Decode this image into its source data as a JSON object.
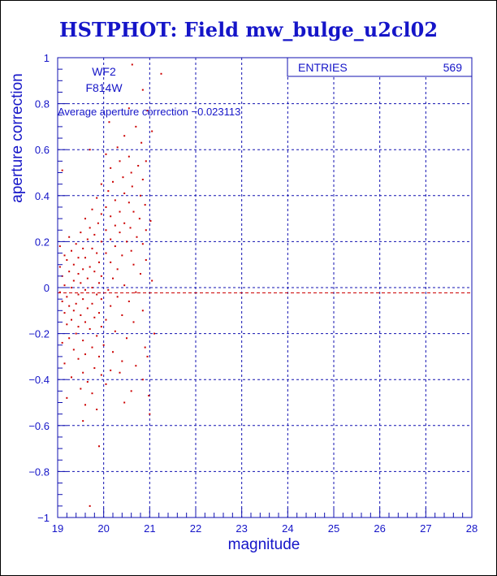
{
  "title": "HSTPHOT: Field mw_bulge_u2cl02",
  "colors": {
    "axis": "#1010b0",
    "text": "#1515c8",
    "points": "#cc0000",
    "mean": "#cc0000"
  },
  "labels": {
    "camera": "WF2",
    "filter": "F814W",
    "average": "Average aperture correction −0.023113"
  },
  "stats": {
    "entries_label": "ENTRIES",
    "entries_value": "569"
  },
  "chart_data": {
    "type": "scatter",
    "title": "HSTPHOT: Field mw_bulge_u2cl02",
    "xlabel": "magnitude",
    "ylabel": "aperture correction",
    "xlim": [
      19,
      28
    ],
    "ylim": [
      -1,
      1
    ],
    "xticks": [
      19,
      20,
      21,
      22,
      23,
      24,
      25,
      26,
      27,
      28
    ],
    "yticks": [
      -1,
      -0.8,
      -0.6,
      -0.4,
      -0.2,
      0,
      0.2,
      0.4,
      0.6,
      0.8,
      1
    ],
    "ytick_labels": [
      "−1",
      "−0.8",
      "−0.6",
      "−0.4",
      "−0.2",
      "0",
      "0.2",
      "0.4",
      "0.6",
      "0.8",
      "1"
    ],
    "grid": true,
    "mean_line": -0.023113,
    "entries": 569,
    "series": [
      {
        "points": [
          [
            20.62,
            0.97
          ],
          [
            21.25,
            0.93
          ],
          [
            20.85,
            0.86
          ],
          [
            20.55,
            0.78
          ],
          [
            20.95,
            0.77
          ],
          [
            20.12,
            0.72
          ],
          [
            20.7,
            0.7
          ],
          [
            21.05,
            0.68
          ],
          [
            20.45,
            0.66
          ],
          [
            20.82,
            0.63
          ],
          [
            20.3,
            0.61
          ],
          [
            19.7,
            0.6
          ],
          [
            20.05,
            0.58
          ],
          [
            20.55,
            0.57
          ],
          [
            20.92,
            0.55
          ],
          [
            20.35,
            0.55
          ],
          [
            20.75,
            0.53
          ],
          [
            20.15,
            0.52
          ],
          [
            19.1,
            0.51
          ],
          [
            20.6,
            0.5
          ],
          [
            20.42,
            0.48
          ],
          [
            20.85,
            0.47
          ],
          [
            20.2,
            0.46
          ],
          [
            19.95,
            0.45
          ],
          [
            20.62,
            0.44
          ],
          [
            20.1,
            0.42
          ],
          [
            20.45,
            0.41
          ],
          [
            20.8,
            0.4
          ],
          [
            19.85,
            0.39
          ],
          [
            20.25,
            0.38
          ],
          [
            20.55,
            0.37
          ],
          [
            20.9,
            0.36
          ],
          [
            20.05,
            0.35
          ],
          [
            19.75,
            0.34
          ],
          [
            20.35,
            0.33
          ],
          [
            20.65,
            0.33
          ],
          [
            19.95,
            0.32
          ],
          [
            20.15,
            0.31
          ],
          [
            20.78,
            0.3
          ],
          [
            19.6,
            0.3
          ],
          [
            21.02,
            0.29
          ],
          [
            20.45,
            0.28
          ],
          [
            19.88,
            0.28
          ],
          [
            20.25,
            0.27
          ],
          [
            20.58,
            0.26
          ],
          [
            19.7,
            0.26
          ],
          [
            20.05,
            0.25
          ],
          [
            20.92,
            0.25
          ],
          [
            19.5,
            0.24
          ],
          [
            20.35,
            0.24
          ],
          [
            19.8,
            0.23
          ],
          [
            20.72,
            0.22
          ],
          [
            19.25,
            0.22
          ],
          [
            20.15,
            0.21
          ],
          [
            19.65,
            0.21
          ],
          [
            20.5,
            0.2
          ],
          [
            19.95,
            0.2
          ],
          [
            19.4,
            0.19
          ],
          [
            20.85,
            0.19
          ],
          [
            19.05,
            0.18
          ],
          [
            20.25,
            0.18
          ],
          [
            19.75,
            0.17
          ],
          [
            19.55,
            0.17
          ],
          [
            20.6,
            0.16
          ],
          [
            19.3,
            0.16
          ],
          [
            20.05,
            0.15
          ],
          [
            19.85,
            0.15
          ],
          [
            19.15,
            0.14
          ],
          [
            20.4,
            0.14
          ],
          [
            19.6,
            0.13
          ],
          [
            19.45,
            0.13
          ],
          [
            20.92,
            0.12
          ],
          [
            19.2,
            0.12
          ],
          [
            20.15,
            0.11
          ],
          [
            19.9,
            0.11
          ],
          [
            19.35,
            0.1
          ],
          [
            20.65,
            0.1
          ],
          [
            19.7,
            0.09
          ],
          [
            19.05,
            0.09
          ],
          [
            20.3,
            0.08
          ],
          [
            19.55,
            0.08
          ],
          [
            19.8,
            0.07
          ],
          [
            19.25,
            0.07
          ],
          [
            20.8,
            0.06
          ],
          [
            19.45,
            0.06
          ],
          [
            19.95,
            0.05
          ],
          [
            19.1,
            0.05
          ],
          [
            20.2,
            0.04
          ],
          [
            19.65,
            0.04
          ],
          [
            19.35,
            0.03
          ],
          [
            21.05,
            0.03
          ],
          [
            19.9,
            0.02
          ],
          [
            19.5,
            0.02
          ],
          [
            19.15,
            0.01
          ],
          [
            20.45,
            0.01
          ],
          [
            19.75,
            0.0
          ],
          [
            19.3,
            0.0
          ],
          [
            20.1,
            -0.01
          ],
          [
            19.6,
            -0.01
          ],
          [
            19.05,
            -0.02
          ],
          [
            20.7,
            -0.02
          ],
          [
            19.45,
            -0.03
          ],
          [
            19.85,
            -0.03
          ],
          [
            19.2,
            -0.04
          ],
          [
            20.3,
            -0.04
          ],
          [
            19.55,
            -0.05
          ],
          [
            19.95,
            -0.05
          ],
          [
            19.1,
            -0.06
          ],
          [
            20.55,
            -0.06
          ],
          [
            19.4,
            -0.07
          ],
          [
            19.75,
            -0.07
          ],
          [
            19.25,
            -0.08
          ],
          [
            20.15,
            -0.08
          ],
          [
            19.65,
            -0.09
          ],
          [
            19.35,
            -0.1
          ],
          [
            20.85,
            -0.1
          ],
          [
            19.9,
            -0.11
          ],
          [
            19.15,
            -0.11
          ],
          [
            20.4,
            -0.12
          ],
          [
            19.5,
            -0.12
          ],
          [
            19.8,
            -0.13
          ],
          [
            19.3,
            -0.14
          ],
          [
            20.05,
            -0.14
          ],
          [
            19.6,
            -0.15
          ],
          [
            20.65,
            -0.15
          ],
          [
            19.2,
            -0.16
          ],
          [
            19.45,
            -0.17
          ],
          [
            19.95,
            -0.17
          ],
          [
            19.7,
            -0.18
          ],
          [
            20.25,
            -0.19
          ],
          [
            19.4,
            -0.2
          ],
          [
            21.1,
            -0.2
          ],
          [
            19.85,
            -0.21
          ],
          [
            19.25,
            -0.22
          ],
          [
            20.5,
            -0.22
          ],
          [
            19.55,
            -0.23
          ],
          [
            19.1,
            -0.24
          ],
          [
            20.0,
            -0.25
          ],
          [
            19.75,
            -0.26
          ],
          [
            20.9,
            -0.26
          ],
          [
            19.35,
            -0.27
          ],
          [
            20.2,
            -0.28
          ],
          [
            19.6,
            -0.29
          ],
          [
            19.9,
            -0.3
          ],
          [
            20.95,
            -0.3
          ],
          [
            19.45,
            -0.31
          ],
          [
            20.4,
            -0.32
          ],
          [
            19.15,
            -0.33
          ],
          [
            20.7,
            -0.34
          ],
          [
            19.8,
            -0.35
          ],
          [
            20.15,
            -0.36
          ],
          [
            19.55,
            -0.37
          ],
          [
            20.35,
            -0.37
          ],
          [
            19.95,
            -0.38
          ],
          [
            19.3,
            -0.39
          ],
          [
            20.85,
            -0.4
          ],
          [
            19.65,
            -0.41
          ],
          [
            20.05,
            -0.42
          ],
          [
            19.5,
            -0.44
          ],
          [
            20.6,
            -0.45
          ],
          [
            19.75,
            -0.46
          ],
          [
            20.98,
            -0.47
          ],
          [
            19.2,
            -0.48
          ],
          [
            20.45,
            -0.5
          ],
          [
            19.6,
            -0.51
          ],
          [
            19.85,
            -0.53
          ],
          [
            21.0,
            -0.55
          ],
          [
            19.55,
            -0.58
          ],
          [
            19.9,
            -0.69
          ],
          [
            19.7,
            -0.95
          ]
        ]
      }
    ]
  }
}
